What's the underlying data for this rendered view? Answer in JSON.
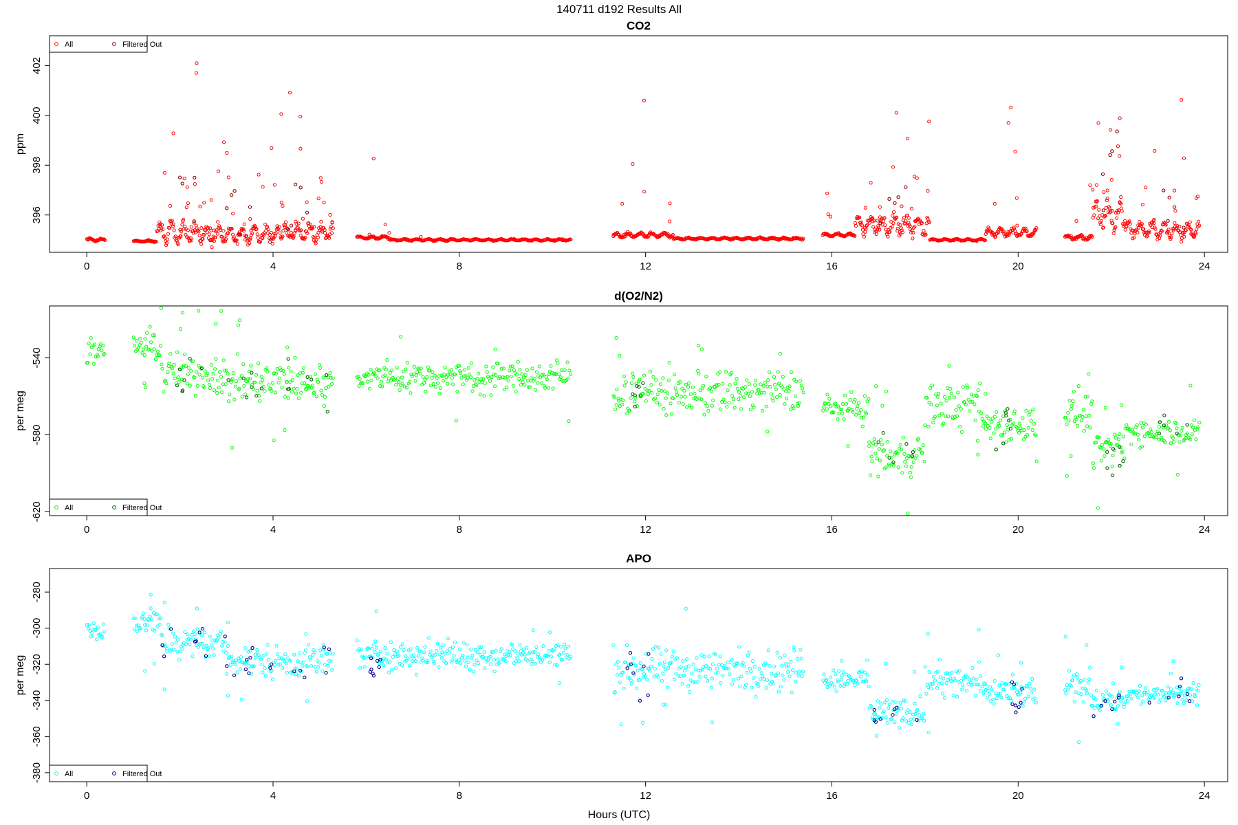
{
  "figure": {
    "title": "140711   d192   Results All",
    "xlabel": "Hours (UTC)"
  },
  "chart_data": [
    {
      "type": "scatter",
      "title": "CO2",
      "ylabel": "ppm",
      "xlim": [
        -0.8,
        24.5
      ],
      "ylim": [
        394.5,
        403.2
      ],
      "xticks": [
        0,
        4,
        8,
        12,
        16,
        20,
        24
      ],
      "yticks": [
        396,
        398,
        400,
        402
      ],
      "legend_position": "top-left",
      "all_color": "#ff0000",
      "filtered_color": "#8b0000",
      "series": [
        {
          "name": "All",
          "role": "all",
          "segments": [
            {
              "x": [
                0.0,
                0.4
              ],
              "base": 395.0,
              "amp": 0.08,
              "spikes": 0
            },
            {
              "x": [
                1.0,
                1.5
              ],
              "base": 394.95,
              "amp": 0.05,
              "spikes": 0
            },
            {
              "x": [
                1.5,
                2.5
              ],
              "base": 395.3,
              "amp": 0.6,
              "spikes": 14
            },
            {
              "x": [
                2.5,
                4.2
              ],
              "base": 395.2,
              "amp": 0.5,
              "spikes": 22
            },
            {
              "x": [
                4.2,
                5.3
              ],
              "base": 395.3,
              "amp": 0.5,
              "spikes": 14
            },
            {
              "x": [
                5.8,
                6.5
              ],
              "base": 395.1,
              "amp": 0.08,
              "spikes": 4
            },
            {
              "x": [
                6.5,
                10.4
              ],
              "base": 395.0,
              "amp": 0.05,
              "spikes": 1
            },
            {
              "x": [
                11.3,
                12.6
              ],
              "base": 395.2,
              "amp": 0.15,
              "spikes": 6
            },
            {
              "x": [
                12.6,
                15.4
              ],
              "base": 395.05,
              "amp": 0.06,
              "spikes": 1
            },
            {
              "x": [
                15.8,
                16.5
              ],
              "base": 395.2,
              "amp": 0.1,
              "spikes": 3
            },
            {
              "x": [
                16.5,
                18.1
              ],
              "base": 395.6,
              "amp": 0.6,
              "spikes": 16
            },
            {
              "x": [
                18.1,
                19.3
              ],
              "base": 395.0,
              "amp": 0.06,
              "spikes": 0
            },
            {
              "x": [
                19.3,
                20.4
              ],
              "base": 395.3,
              "amp": 0.25,
              "spikes": 6
            },
            {
              "x": [
                21.0,
                21.6
              ],
              "base": 395.1,
              "amp": 0.15,
              "spikes": 2
            },
            {
              "x": [
                21.6,
                22.3
              ],
              "base": 396.0,
              "amp": 0.9,
              "spikes": 12
            },
            {
              "x": [
                22.3,
                23.9
              ],
              "base": 395.4,
              "amp": 0.5,
              "spikes": 12
            }
          ]
        },
        {
          "name": "Filtered Out",
          "role": "filtered",
          "count": 30,
          "x_windows": [
            [
              1.9,
              2.4
            ],
            [
              3.0,
              3.8
            ],
            [
              4.3,
              4.8
            ],
            [
              17.0,
              17.9
            ],
            [
              21.8,
              22.2
            ],
            [
              23.1,
              23.6
            ]
          ],
          "base": 396.0,
          "amp": 1.2
        }
      ]
    },
    {
      "type": "scatter",
      "title": "d(O2/N2)",
      "ylabel": "per meg",
      "xlim": [
        -0.8,
        24.5
      ],
      "ylim": [
        -622,
        -513
      ],
      "xticks": [
        0,
        4,
        8,
        12,
        16,
        20,
        24
      ],
      "yticks": [
        -620,
        -580,
        -540
      ],
      "legend_position": "bottom-left",
      "all_color": "#00ff00",
      "filtered_color": "#006400",
      "series": [
        {
          "name": "All",
          "role": "all",
          "segments": [
            {
              "x": [
                0.0,
                0.4
              ],
              "base": -538,
              "amp": 6,
              "spikes": 0
            },
            {
              "x": [
                1.0,
                1.6
              ],
              "base": -534,
              "amp": 7,
              "spikes": 3
            },
            {
              "x": [
                1.6,
                3.0
              ],
              "base": -548,
              "amp": 9,
              "spikes": 5
            },
            {
              "x": [
                3.0,
                5.3
              ],
              "base": -553,
              "amp": 10,
              "spikes": 6
            },
            {
              "x": [
                5.8,
                10.4
              ],
              "base": -550,
              "amp": 7,
              "spikes": 4
            },
            {
              "x": [
                11.3,
                15.4
              ],
              "base": -558,
              "amp": 10,
              "spikes": 6
            },
            {
              "x": [
                15.8,
                16.8
              ],
              "base": -566,
              "amp": 6,
              "spikes": 2
            },
            {
              "x": [
                16.8,
                18.0
              ],
              "base": -590,
              "amp": 9,
              "spikes": 4
            },
            {
              "x": [
                18.0,
                19.2
              ],
              "base": -565,
              "amp": 10,
              "spikes": 3
            },
            {
              "x": [
                19.2,
                20.4
              ],
              "base": -574,
              "amp": 8,
              "spikes": 2
            },
            {
              "x": [
                21.0,
                21.6
              ],
              "base": -568,
              "amp": 9,
              "spikes": 3
            },
            {
              "x": [
                21.6,
                22.3
              ],
              "base": -588,
              "amp": 8,
              "spikes": 3
            },
            {
              "x": [
                22.3,
                23.9
              ],
              "base": -578,
              "amp": 6,
              "spikes": 2
            }
          ]
        },
        {
          "name": "Filtered Out",
          "role": "filtered",
          "count": 55,
          "x_windows": [
            [
              1.9,
              2.6
            ],
            [
              2.8,
              3.8
            ],
            [
              4.3,
              5.3
            ],
            [
              11.6,
              12.0
            ],
            [
              16.9,
              17.9
            ],
            [
              19.5,
              20.0
            ],
            [
              21.6,
              22.3
            ],
            [
              22.8,
              23.8
            ]
          ],
          "base": -570,
          "amp": 16
        }
      ]
    },
    {
      "type": "scatter",
      "title": "APO",
      "ylabel": "per meg",
      "xlim": [
        -0.8,
        24.5
      ],
      "ylim": [
        -385,
        -267
      ],
      "xticks": [
        0,
        4,
        8,
        12,
        16,
        20,
        24
      ],
      "yticks": [
        -380,
        -360,
        -340,
        -320,
        -300,
        -280
      ],
      "legend_position": "bottom-left",
      "all_color": "#00ffff",
      "filtered_color": "#00008b",
      "series": [
        {
          "name": "All",
          "role": "all",
          "segments": [
            {
              "x": [
                0.0,
                0.4
              ],
              "base": -302,
              "amp": 6,
              "spikes": 0
            },
            {
              "x": [
                1.0,
                1.6
              ],
              "base": -297,
              "amp": 7,
              "spikes": 3
            },
            {
              "x": [
                1.6,
                3.0
              ],
              "base": -308,
              "amp": 7,
              "spikes": 3
            },
            {
              "x": [
                3.0,
                5.3
              ],
              "base": -318,
              "amp": 8,
              "spikes": 5
            },
            {
              "x": [
                5.8,
                10.4
              ],
              "base": -315,
              "amp": 7,
              "spikes": 4
            },
            {
              "x": [
                11.3,
                15.4
              ],
              "base": -323,
              "amp": 10,
              "spikes": 6
            },
            {
              "x": [
                15.8,
                16.8
              ],
              "base": -328,
              "amp": 5,
              "spikes": 2
            },
            {
              "x": [
                16.8,
                18.0
              ],
              "base": -346,
              "amp": 7,
              "spikes": 3
            },
            {
              "x": [
                18.0,
                19.2
              ],
              "base": -330,
              "amp": 9,
              "spikes": 3
            },
            {
              "x": [
                19.2,
                20.4
              ],
              "base": -336,
              "amp": 7,
              "spikes": 2
            },
            {
              "x": [
                21.0,
                21.6
              ],
              "base": -332,
              "amp": 8,
              "spikes": 3
            },
            {
              "x": [
                21.6,
                22.3
              ],
              "base": -340,
              "amp": 6,
              "spikes": 2
            },
            {
              "x": [
                22.3,
                23.9
              ],
              "base": -337,
              "amp": 5,
              "spikes": 2
            }
          ]
        },
        {
          "name": "Filtered Out",
          "role": "filtered",
          "count": 70,
          "x_windows": [
            [
              1.6,
              2.6
            ],
            [
              2.8,
              3.6
            ],
            [
              3.9,
              5.3
            ],
            [
              6.0,
              6.4
            ],
            [
              11.6,
              12.1
            ],
            [
              16.9,
              17.9
            ],
            [
              19.8,
              20.1
            ],
            [
              21.5,
              22.3
            ],
            [
              22.8,
              23.9
            ]
          ],
          "base": -330,
          "amp": 12
        }
      ]
    }
  ]
}
